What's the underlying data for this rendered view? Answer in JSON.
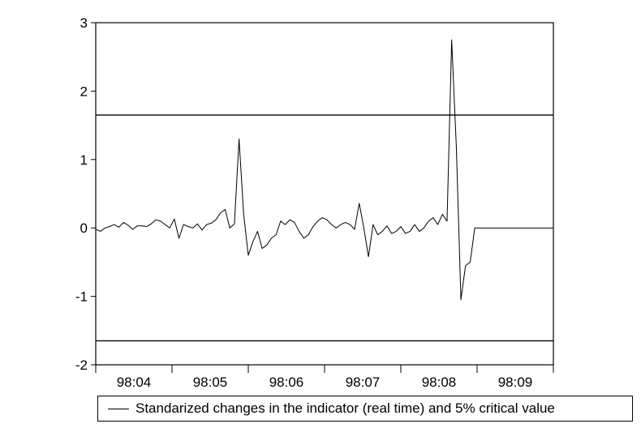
{
  "chart_data": {
    "type": "line",
    "title": "",
    "xlabel": "",
    "ylabel": "",
    "ylim": [
      -2,
      3
    ],
    "yticks": [
      "3",
      "2",
      "1",
      "0",
      "-1",
      "-2"
    ],
    "x_tick_labels": [
      "98:04",
      "98:05",
      "98:06",
      "98:07",
      "98:08",
      "98:09"
    ],
    "grid": false,
    "legend_placement": "bottom",
    "legend": "Standarized changes in the indicator (real time) and 5% critical value",
    "critical_values": [
      1.65,
      -1.65
    ],
    "series": [
      {
        "name": "Standarized changes in the indicator (real time) and 5% critical value",
        "x_start": "98:04",
        "x_end": "98:09",
        "values": [
          -0.02,
          -0.05,
          0.0,
          0.02,
          0.05,
          0.01,
          0.08,
          0.04,
          -0.02,
          0.03,
          0.03,
          0.02,
          0.06,
          0.12,
          0.1,
          0.05,
          0.0,
          0.13,
          -0.15,
          0.05,
          0.02,
          0.0,
          0.06,
          -0.03,
          0.05,
          0.07,
          0.12,
          0.22,
          0.27,
          0.0,
          0.06,
          1.3,
          0.2,
          -0.4,
          -0.2,
          -0.05,
          -0.3,
          -0.25,
          -0.15,
          -0.1,
          0.1,
          0.05,
          0.12,
          0.08,
          -0.05,
          -0.15,
          -0.1,
          0.02,
          0.1,
          0.15,
          0.12,
          0.05,
          0.0,
          0.05,
          0.08,
          0.05,
          -0.02,
          0.36,
          0.0,
          -0.42,
          0.05,
          -0.1,
          -0.05,
          0.03,
          -0.08,
          -0.05,
          0.02,
          -0.08,
          -0.05,
          0.05,
          -0.05,
          0.0,
          0.1,
          0.15,
          0.05,
          0.2,
          0.1,
          2.75,
          1.2,
          -1.05,
          -0.55,
          -0.5,
          0.0,
          0.0,
          0.0,
          0.0,
          0.0,
          0.0,
          0.0,
          0.0,
          0.0,
          0.0,
          0.0,
          0.0,
          0.0,
          0.0,
          0.0,
          0.0,
          0.0,
          0.0
        ]
      }
    ]
  }
}
